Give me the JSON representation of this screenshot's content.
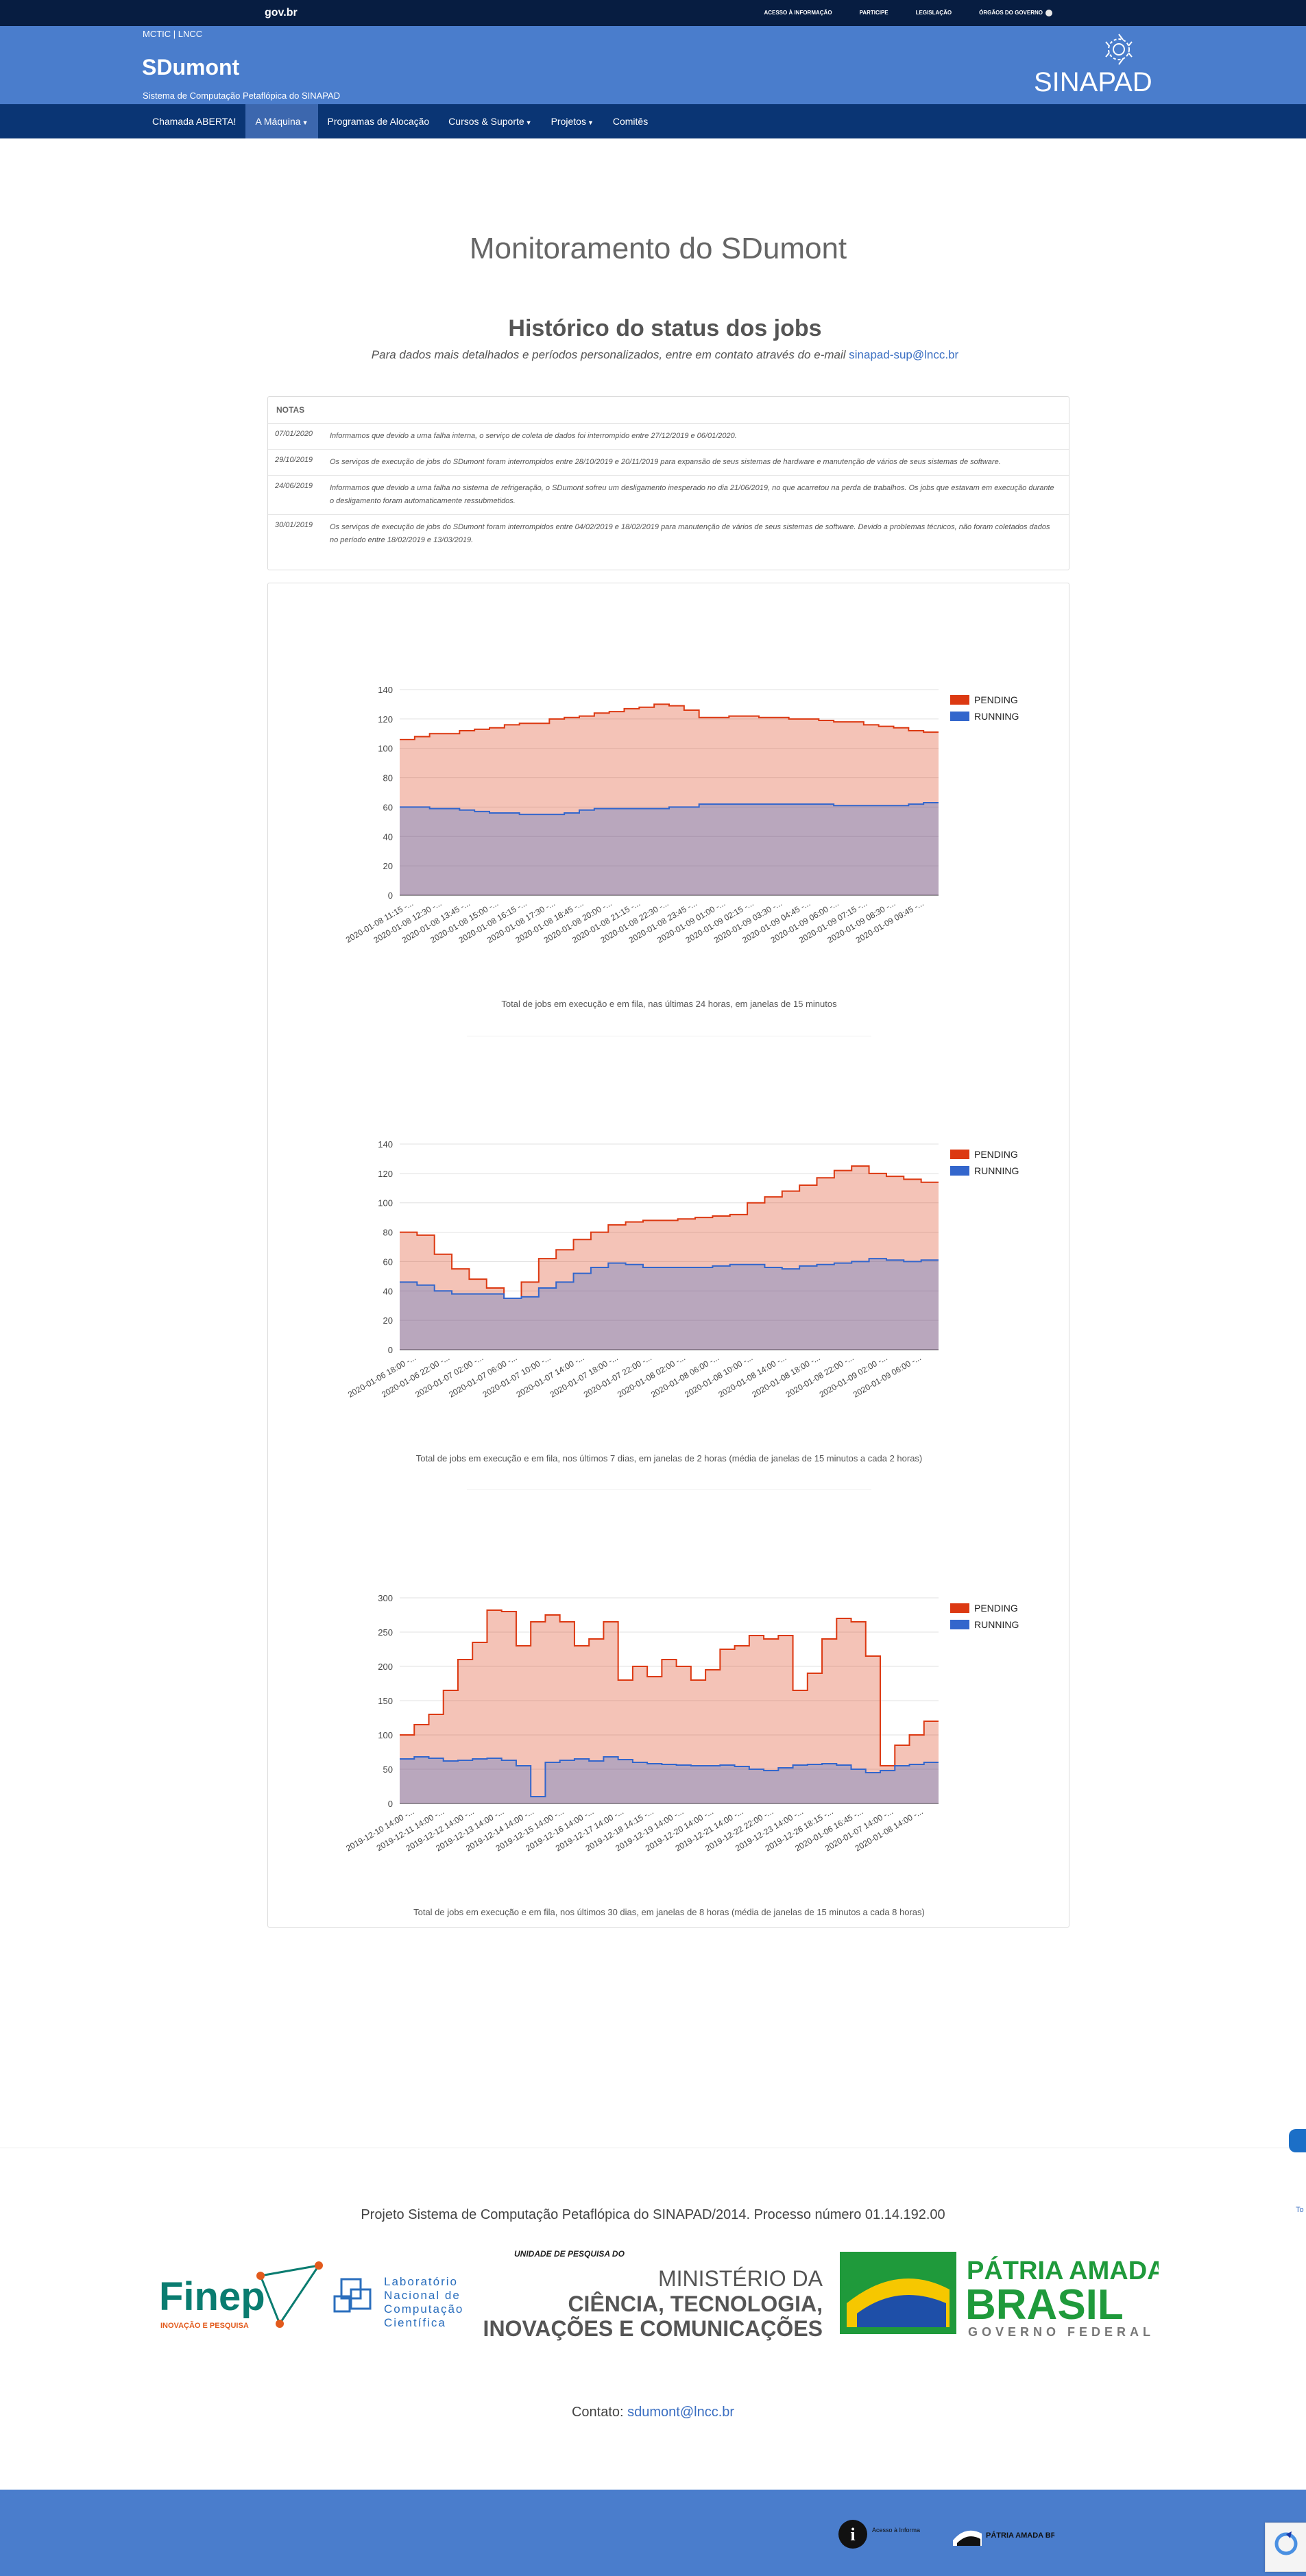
{
  "govbar": {
    "logo": "gov.br",
    "links": [
      "ACESSO À INFORMAÇÃO",
      "PARTICIPE",
      "LEGISLAÇÃO",
      "ÓRGÃOS DO GOVERNO"
    ]
  },
  "header": {
    "toplink": "MCTIC | LNCC",
    "title": "SDumont",
    "subtitle": "Sistema de Computação Petaflópica do SINAPAD",
    "logo_text": "SINAPAD"
  },
  "nav": {
    "items": [
      {
        "label": "Chamada ABERTA!",
        "dropdown": false,
        "active": false
      },
      {
        "label": "A Máquina",
        "dropdown": true,
        "active": true
      },
      {
        "label": "Programas de Alocação",
        "dropdown": false,
        "active": false
      },
      {
        "label": "Cursos & Suporte",
        "dropdown": true,
        "active": false
      },
      {
        "label": "Projetos",
        "dropdown": true,
        "active": false
      },
      {
        "label": "Comitês",
        "dropdown": false,
        "active": false
      }
    ]
  },
  "main": {
    "title": "Monitoramento do SDumont",
    "subtitle": "Histórico do status dos jobs",
    "lead_text": "Para dados mais detalhados e períodos personalizados, entre em contato através do e-mail",
    "lead_email": "sinapad-sup@lncc.br"
  },
  "notes": {
    "heading": "NOTAS",
    "items": [
      {
        "date": "07/01/2020",
        "text": "Informamos que devido a uma falha interna, o serviço de coleta de dados foi interrompido entre 27/12/2019 e 06/01/2020."
      },
      {
        "date": "29/10/2019",
        "text": "Os serviços de execução de jobs do SDumont foram interrompidos entre 28/10/2019 e 20/11/2019 para expansão de seus sistemas de hardware e manutenção de vários de seus sistemas de software."
      },
      {
        "date": "24/06/2019",
        "text": "Informamos que devido a uma falha no sistema de refrigeração, o SDumont sofreu um desligamento inesperado no dia 21/06/2019, no que acarretou na perda de trabalhos. Os jobs que estavam em execução durante o desligamento foram automaticamente ressubmetidos."
      },
      {
        "date": "30/01/2019",
        "text": "Os serviços de execução de jobs do SDumont foram interrompidos entre 04/02/2019 e 18/02/2019 para manutenção de vários de seus sistemas de software. Devido a problemas técnicos, não foram coletados dados no período entre 18/02/2019 e 13/03/2019."
      }
    ]
  },
  "colors": {
    "pending": "#dc3912",
    "running": "#3366cc",
    "header_blue": "#4a7dcc",
    "nav_blue": "#0a3574",
    "gov_dark": "#071d41"
  },
  "chart_data": [
    {
      "type": "area",
      "stacked": false,
      "caption": "Total de jobs em execução e em fila, nas últimas 24 horas, em janelas de 15 minutos",
      "legend": [
        "PENDING",
        "RUNNING"
      ],
      "legend_position": "right",
      "ylim": [
        0,
        140
      ],
      "yticks": [
        0,
        20,
        40,
        60,
        80,
        100,
        120,
        140
      ],
      "xtick_labels": [
        "2020-01-08 11:15 -...",
        "2020-01-08 12:30 -...",
        "2020-01-08 13:45 -...",
        "2020-01-08 15:00 -...",
        "2020-01-08 16:15 -...",
        "2020-01-08 17:30 -...",
        "2020-01-08 18:45 -...",
        "2020-01-08 20:00 -...",
        "2020-01-08 21:15 -...",
        "2020-01-08 22:30 -...",
        "2020-01-08 23:45 -...",
        "2020-01-09 01:00 -...",
        "2020-01-09 02:15 -...",
        "2020-01-09 03:30 -...",
        "2020-01-09 04:45 -...",
        "2020-01-09 06:00 -...",
        "2020-01-09 07:15 -...",
        "2020-01-09 08:30 -...",
        "2020-01-09 09:45 -..."
      ],
      "series": [
        {
          "name": "PENDING",
          "values": [
            106,
            108,
            110,
            110,
            112,
            113,
            114,
            116,
            117,
            117,
            120,
            121,
            122,
            124,
            125,
            127,
            128,
            130,
            129,
            126,
            121,
            121,
            122,
            122,
            121,
            121,
            120,
            120,
            119,
            118,
            118,
            116,
            115,
            114,
            112,
            111
          ]
        },
        {
          "name": "RUNNING",
          "values": [
            60,
            60,
            59,
            59,
            58,
            57,
            56,
            56,
            55,
            55,
            55,
            56,
            58,
            59,
            59,
            59,
            59,
            59,
            60,
            60,
            62,
            62,
            62,
            62,
            62,
            62,
            62,
            62,
            62,
            61,
            61,
            61,
            61,
            61,
            62,
            63
          ]
        }
      ]
    },
    {
      "type": "area",
      "stacked": false,
      "caption": "Total de jobs em execução e em fila, nos últimos 7 dias, em janelas de 2 horas (média de janelas de 15 minutos a cada 2 horas)",
      "legend": [
        "PENDING",
        "RUNNING"
      ],
      "legend_position": "right",
      "ylim": [
        0,
        140
      ],
      "yticks": [
        0,
        20,
        40,
        60,
        80,
        100,
        120,
        140
      ],
      "xtick_labels": [
        "2020-01-06 18:00 -...",
        "2020-01-06 22:00 -...",
        "2020-01-07 02:00 -...",
        "2020-01-07 06:00 -...",
        "2020-01-07 10:00 -...",
        "2020-01-07 14:00 -...",
        "2020-01-07 18:00 -...",
        "2020-01-07 22:00 -...",
        "2020-01-08 02:00 -...",
        "2020-01-08 06:00 -...",
        "2020-01-08 10:00 -...",
        "2020-01-08 14:00 -...",
        "2020-01-08 18:00 -...",
        "2020-01-08 22:00 -...",
        "2020-01-09 02:00 -...",
        "2020-01-09 06:00 -..."
      ],
      "series": [
        {
          "name": "PENDING",
          "values": [
            80,
            78,
            65,
            55,
            48,
            42,
            35,
            46,
            62,
            68,
            75,
            80,
            85,
            87,
            88,
            88,
            89,
            90,
            91,
            92,
            100,
            104,
            108,
            112,
            117,
            122,
            125,
            120,
            118,
            116,
            114
          ]
        },
        {
          "name": "RUNNING",
          "values": [
            46,
            44,
            40,
            38,
            38,
            38,
            35,
            36,
            42,
            46,
            52,
            56,
            59,
            58,
            56,
            56,
            56,
            56,
            57,
            58,
            58,
            56,
            55,
            57,
            58,
            59,
            60,
            62,
            61,
            60,
            61
          ]
        }
      ]
    },
    {
      "type": "area",
      "stacked": false,
      "caption": "Total de jobs em execução e em fila, nos últimos 30 dias, em janelas de 8 horas (média de janelas de 15 minutos a cada 8 horas)",
      "legend": [
        "PENDING",
        "RUNNING"
      ],
      "legend_position": "right",
      "ylim": [
        0,
        300
      ],
      "yticks": [
        0,
        50,
        100,
        150,
        200,
        250,
        300
      ],
      "xtick_labels": [
        "2019-12-10 14:00 -...",
        "2019-12-11 14:00 -...",
        "2019-12-12 14:00 -...",
        "2019-12-13 14:00 -...",
        "2019-12-14 14:00 -...",
        "2019-12-15 14:00 -...",
        "2019-12-16 14:00 -...",
        "2019-12-17 14:00 -...",
        "2019-12-18 14:15 -...",
        "2019-12-19 14:00 -...",
        "2019-12-20 14:00 -...",
        "2019-12-21 14:00 -...",
        "2019-12-22 22:00 -...",
        "2019-12-23 14:00 -...",
        "2019-12-26 18:15 -...",
        "2020-01-06 16:45 -...",
        "2020-01-07 14:00 -...",
        "2020-01-08 14:00 -..."
      ],
      "series": [
        {
          "name": "PENDING",
          "values": [
            100,
            115,
            130,
            165,
            210,
            235,
            282,
            280,
            230,
            265,
            275,
            265,
            230,
            240,
            265,
            180,
            200,
            185,
            210,
            200,
            180,
            195,
            225,
            230,
            245,
            240,
            245,
            165,
            190,
            240,
            270,
            265,
            215,
            55,
            85,
            100,
            120
          ]
        },
        {
          "name": "RUNNING",
          "values": [
            65,
            68,
            66,
            62,
            63,
            65,
            66,
            63,
            55,
            10,
            60,
            63,
            65,
            62,
            68,
            64,
            60,
            58,
            57,
            56,
            55,
            55,
            56,
            54,
            50,
            48,
            52,
            56,
            57,
            58,
            56,
            50,
            45,
            48,
            55,
            57,
            60
          ]
        }
      ]
    }
  ],
  "footer": {
    "project": "Projeto Sistema de Computação Petaflópica do SINAPAD/2014. Processo número 01.14.192.00",
    "finep": "Finep",
    "finep_tag": "INOVAÇÃO E PESQUISA",
    "lncc_lines": [
      "Laboratório",
      "Nacional de",
      "Computação",
      "Científica"
    ],
    "unidade": "UNIDADE DE PESQUISA DO",
    "ministerio_lines": [
      "MINISTÉRIO DA",
      "CIÊNCIA, TECNOLOGIA,",
      "INOVAÇÕES E COMUNICAÇÕES"
    ],
    "patria_lines": [
      "PÁTRIA AMADA",
      "BRASIL",
      "GOVERNO FEDERAL"
    ],
    "contact_label": "Contato:",
    "contact_email": "sdumont@lncc.br",
    "bottom_acesso": "Acesso à Informação",
    "bottom_patria": "PÁTRIA AMADA BRASIL"
  }
}
